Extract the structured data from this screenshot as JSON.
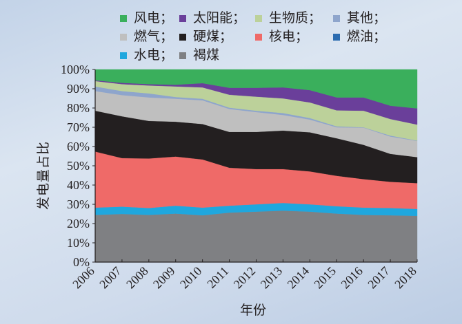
{
  "chart_data": {
    "type": "area",
    "stacked": true,
    "normalized": true,
    "title": "",
    "xlabel": "年份",
    "ylabel": "发电量占比",
    "ylim": [
      0,
      100
    ],
    "yticks": [
      "0%",
      "10%",
      "20%",
      "30%",
      "40%",
      "50%",
      "60%",
      "70%",
      "80%",
      "90%",
      "100%"
    ],
    "categories": [
      "2006",
      "2007",
      "2008",
      "2009",
      "2010",
      "2011",
      "2012",
      "2013",
      "2014",
      "2015",
      "2016",
      "2017",
      "2018"
    ],
    "legend_position": "top",
    "legend": [
      {
        "name": "风电；",
        "color": "#3aaf5c"
      },
      {
        "name": "太阳能；",
        "color": "#6a3f9a"
      },
      {
        "name": "生物质；",
        "color": "#bcd19a"
      },
      {
        "name": "其他；",
        "color": "#8ea5cc"
      },
      {
        "name": "燃气；",
        "color": "#bfbfbf"
      },
      {
        "name": "硬煤；",
        "color": "#231f20"
      },
      {
        "name": "核电；",
        "color": "#ef6a68"
      },
      {
        "name": "燃油；",
        "color": "#2b6cb0"
      },
      {
        "name": "水电；",
        "color": "#1fa7de"
      },
      {
        "name": "褐煤",
        "color": "#7f8083"
      }
    ],
    "series": [
      {
        "name": "褐煤",
        "color": "#7f8083",
        "values": [
          24.5,
          25.0,
          24.5,
          25.2,
          24.3,
          25.7,
          26.2,
          26.7,
          26.2,
          25.2,
          24.5,
          24.3,
          24.0
        ]
      },
      {
        "name": "水电",
        "color": "#1fa7de",
        "values": [
          3.8,
          3.8,
          3.6,
          4.1,
          4.0,
          3.6,
          3.8,
          4.0,
          3.8,
          3.8,
          3.8,
          3.8,
          3.6
        ]
      },
      {
        "name": "燃油",
        "color": "#2b6cb0",
        "values": [
          0,
          0,
          0,
          0,
          0,
          0,
          0,
          0,
          0,
          0,
          0,
          0,
          0
        ]
      },
      {
        "name": "核电",
        "color": "#ef6a68",
        "values": [
          29.1,
          25.2,
          25.7,
          25.5,
          25.0,
          19.7,
          18.3,
          17.6,
          17.1,
          15.8,
          14.8,
          13.6,
          13.4
        ]
      },
      {
        "name": "硬煤",
        "color": "#231f20",
        "values": [
          21.2,
          21.7,
          19.5,
          18.1,
          18.4,
          18.6,
          19.3,
          20.0,
          20.3,
          19.5,
          17.8,
          14.5,
          13.5
        ]
      },
      {
        "name": "燃气",
        "color": "#bfbfbf",
        "values": [
          10.2,
          11.0,
          12.2,
          11.9,
          12.3,
          11.9,
          10.3,
          8.1,
          6.6,
          5.7,
          8.9,
          9.0,
          8.4
        ]
      },
      {
        "name": "其他",
        "color": "#8ea5cc",
        "values": [
          2.4,
          2.1,
          2.1,
          0.9,
          0.8,
          0.7,
          0.7,
          1.0,
          0.8,
          0.5,
          0.2,
          0.5,
          0.2
        ]
      },
      {
        "name": "生物质",
        "color": "#bcd19a",
        "values": [
          2.8,
          3.6,
          4.1,
          5.5,
          5.9,
          6.7,
          7.3,
          7.6,
          8.1,
          8.3,
          8.6,
          8.6,
          8.3
        ]
      },
      {
        "name": "太阳能",
        "color": "#6a3f9a",
        "values": [
          0.4,
          0.7,
          0.7,
          0.9,
          2.2,
          3.6,
          4.6,
          5.7,
          6.4,
          6.7,
          6.9,
          6.9,
          8.4
        ]
      },
      {
        "name": "风电",
        "color": "#3aaf5c",
        "values": [
          5.6,
          6.9,
          7.6,
          7.9,
          7.1,
          9.5,
          9.5,
          9.3,
          10.7,
          14.5,
          14.5,
          18.8,
          20.2
        ]
      }
    ],
    "grid": false
  }
}
